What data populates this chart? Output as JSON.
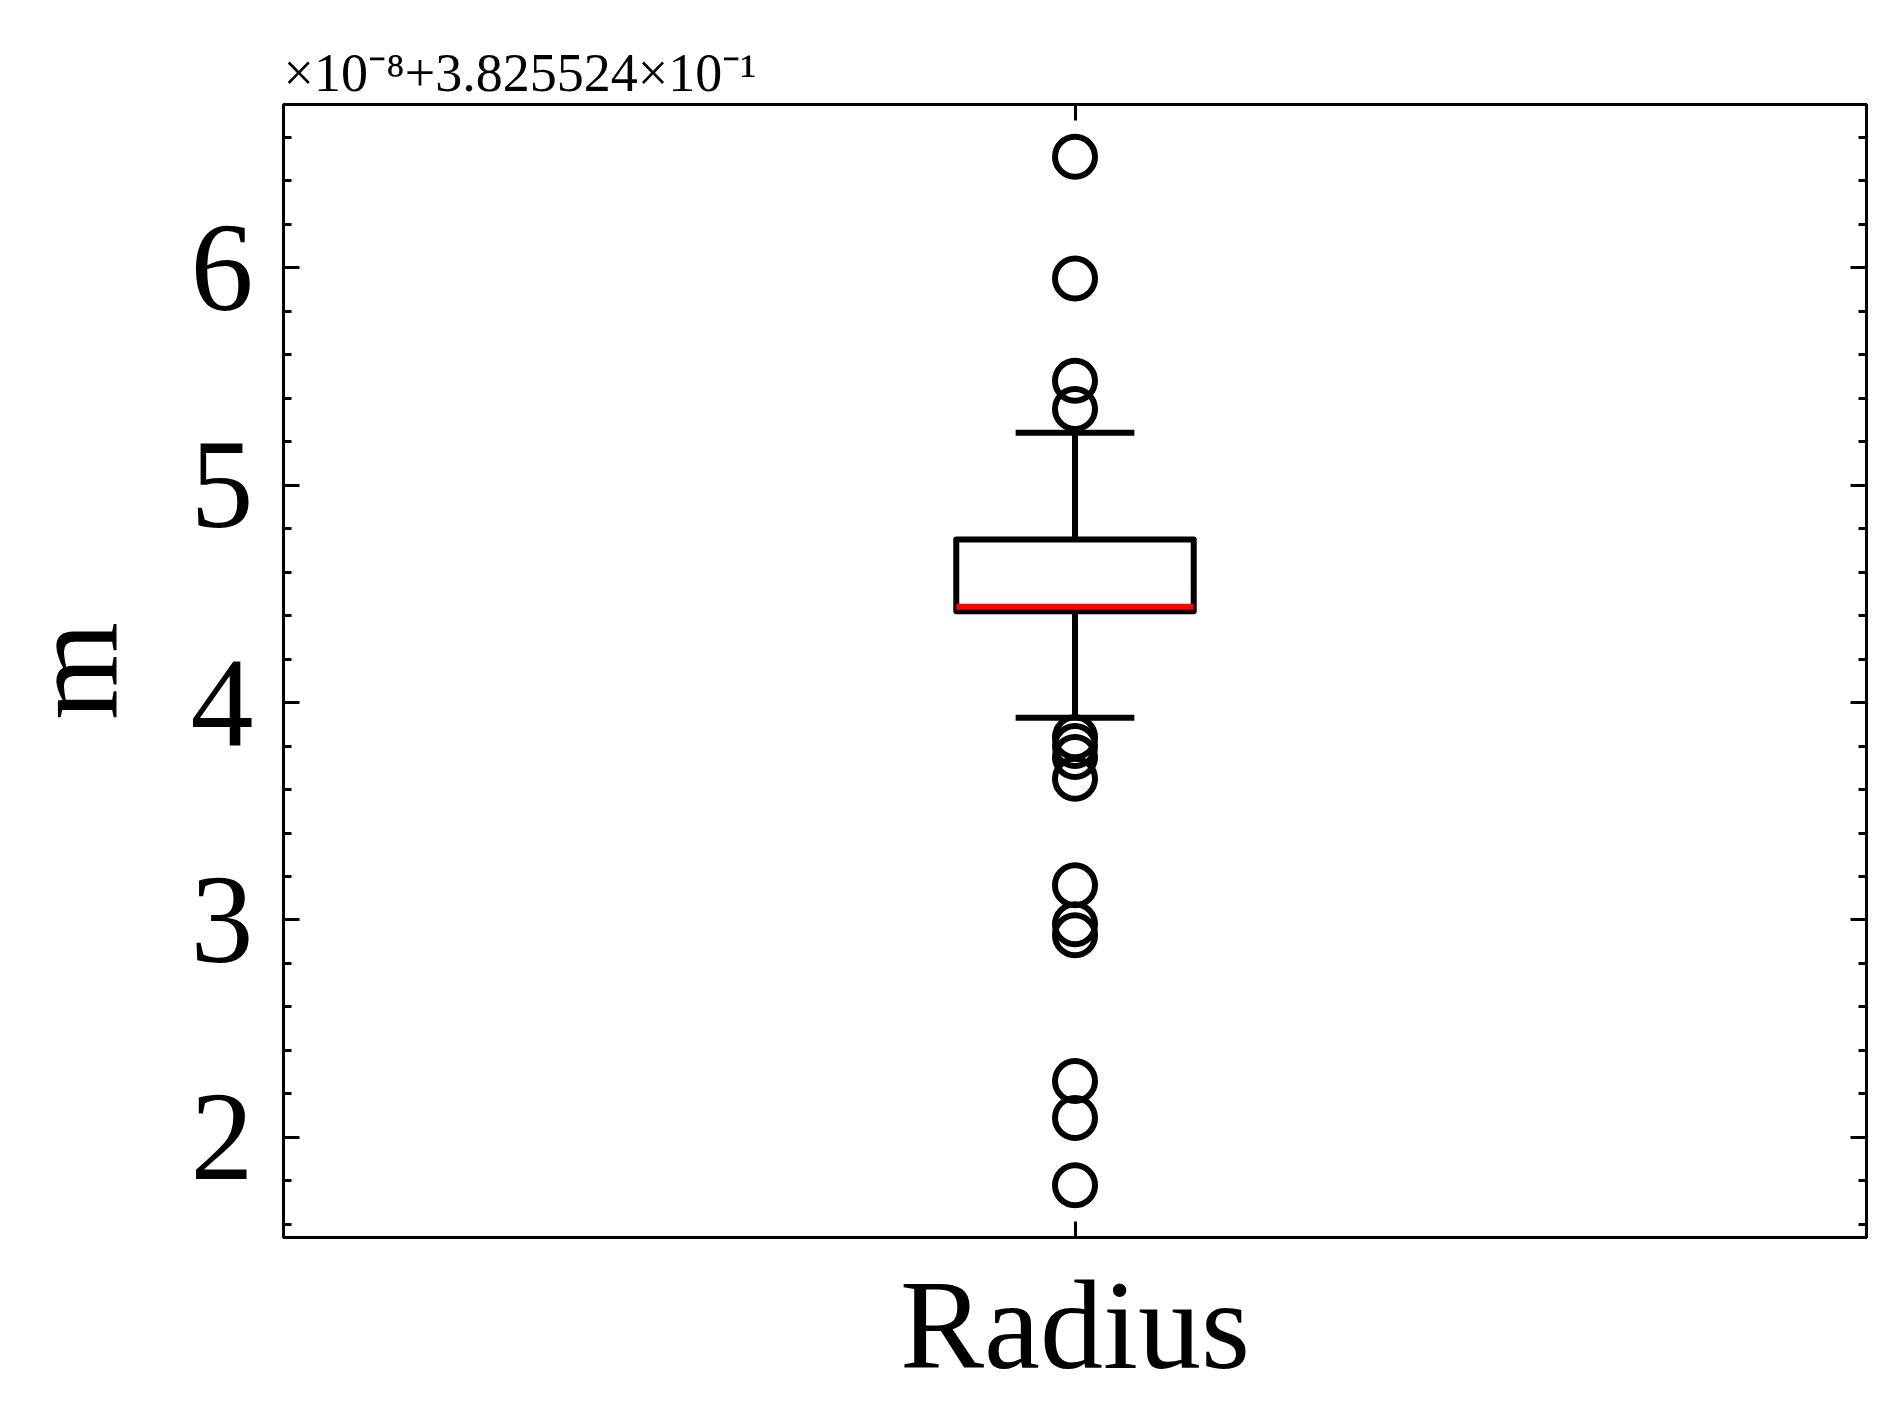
{
  "chart_data": {
    "type": "box",
    "categories": [
      "Radius"
    ],
    "ylabel": "m",
    "annotations": [
      "×10⁻⁸+3.825524×10⁻¹"
    ],
    "color": "#000000",
    "marker": "circle",
    "boxes": [
      {
        "low": 3.93,
        "q1": 4.42,
        "median": 4.44,
        "q3": 4.75,
        "high": 5.24,
        "outliers": [
          6.51,
          5.95,
          5.48,
          5.35,
          3.84,
          3.8,
          3.75,
          3.65,
          3.16,
          2.98,
          2.93,
          2.26,
          2.09,
          1.78
        ]
      }
    ],
    "ylim": [
      1.54,
      6.75
    ],
    "yticks": [
      2,
      3,
      4,
      5,
      6
    ]
  }
}
